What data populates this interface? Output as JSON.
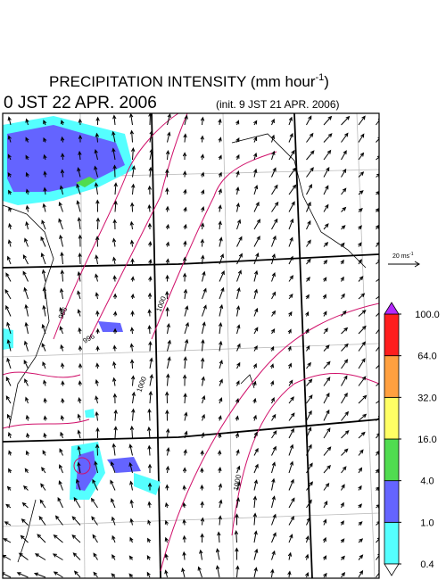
{
  "title": "PRECIPITATION INTENSITY (mm hour",
  "title_exponent": "-1",
  "title_end": ")",
  "valid_time": "0 JST 22 APR. 2006",
  "init_time": "(init. 9 JST 21 APR. 2006)",
  "reference_vector": {
    "label": "20 ms",
    "exponent": "-1"
  },
  "contour_labels": [
    "996",
    "1000",
    "996",
    "1000",
    "1000"
  ],
  "colorbar": {
    "levels": [
      {
        "value": 0.4,
        "label": "0.4"
      },
      {
        "value": 1,
        "label": "1.0"
      },
      {
        "value": 4,
        "label": "4.0"
      },
      {
        "value": 16,
        "label": "16.0"
      },
      {
        "value": 32,
        "label": "32.0"
      },
      {
        "value": 64,
        "label": "64.0"
      },
      {
        "value": 100,
        "label": "100.0"
      }
    ],
    "colors": [
      "#55ffff",
      "#6464ff",
      "#50dc50",
      "#ffff64",
      "#ffa040",
      "#ff1e1e"
    ],
    "under_color": "#ffffff",
    "over_color": "#b428ff"
  }
}
